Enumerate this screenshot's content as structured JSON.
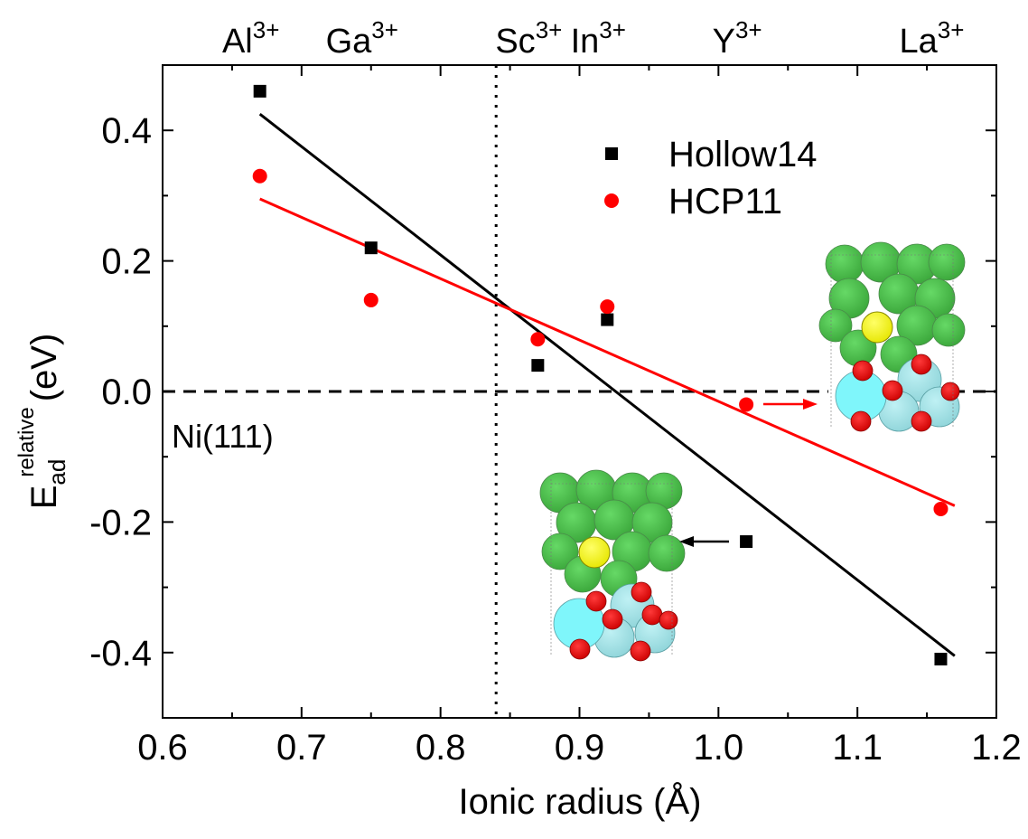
{
  "chart_data": {
    "type": "scatter",
    "xlabel": "Ionic radius (Å)",
    "ylabel": {
      "main": "E",
      "sub": "ad",
      "sup": "relative",
      "unit": "(eV)"
    },
    "xlim": [
      0.6,
      1.2
    ],
    "ylim": [
      -0.5,
      0.5
    ],
    "x_ticks": [
      "0.6",
      "0.7",
      "0.8",
      "0.9",
      "1.0",
      "1.1",
      "1.2"
    ],
    "y_ticks": [
      "0.4",
      "0.2",
      "0.0",
      "-0.2",
      "-0.4"
    ],
    "grid": false,
    "legend_position": "upper-right",
    "series": [
      {
        "name": "Hollow14",
        "marker": "square",
        "color": "#000000",
        "x": [
          0.67,
          0.75,
          0.87,
          0.92,
          1.02,
          1.16
        ],
        "y": [
          0.46,
          0.22,
          0.04,
          0.11,
          -0.23,
          -0.41
        ],
        "fit": {
          "x": [
            0.67,
            1.17
          ],
          "y": [
            0.425,
            -0.405
          ]
        }
      },
      {
        "name": "HCP11",
        "marker": "circle",
        "color": "#ff0000",
        "x": [
          0.67,
          0.75,
          0.87,
          0.92,
          1.02,
          1.16
        ],
        "y": [
          0.33,
          0.14,
          0.08,
          0.13,
          -0.02,
          -0.18
        ],
        "fit": {
          "x": [
            0.67,
            1.17
          ],
          "y": [
            0.295,
            -0.175
          ]
        }
      }
    ],
    "top_labels": [
      {
        "base": "Al",
        "sup": "3+",
        "x": 0.67
      },
      {
        "base": "Ga",
        "sup": "3+",
        "x": 0.75
      },
      {
        "base": "Sc",
        "sup": "3+",
        "x": 0.87
      },
      {
        "base": "In",
        "sup": "3+",
        "x": 0.92
      },
      {
        "base": "Y",
        "sup": "3+",
        "x": 1.02
      },
      {
        "base": "La",
        "sup": "3+",
        "x": 1.16
      }
    ],
    "reference_lines": {
      "horizontal_y": 0.0,
      "vertical_x": 0.84
    },
    "annotations": {
      "reference_label": "Ni(111)"
    }
  }
}
